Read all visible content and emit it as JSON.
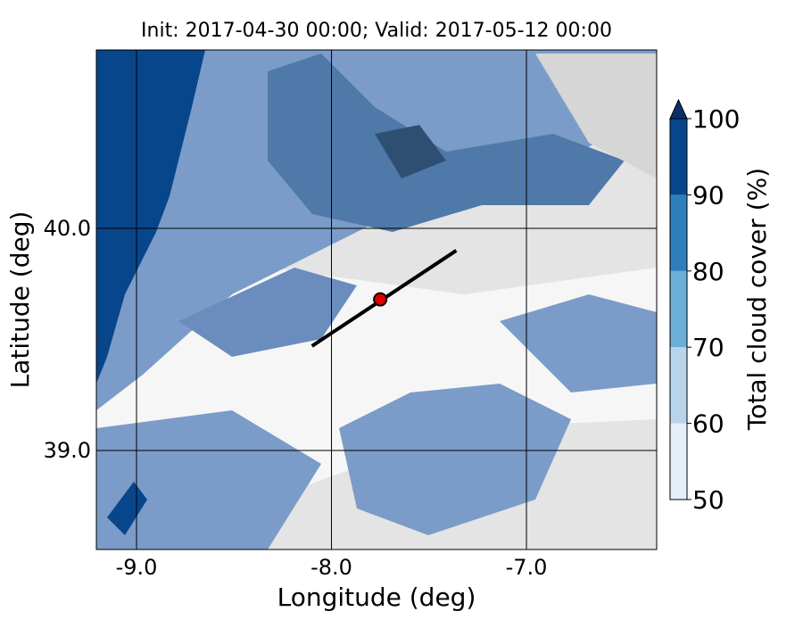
{
  "map": {
    "title": "Init: 2017-04-30 00:00; Valid: 2017-05-12 00:00",
    "x_label": "Longitude (deg)",
    "y_label": "Latitude (deg)",
    "xlim": [
      -9.206,
      -6.332
    ],
    "ylim": [
      38.554,
      40.803
    ],
    "x_ticks": [
      {
        "value": -9,
        "label": "-9.0"
      },
      {
        "value": -8,
        "label": "-8.0"
      },
      {
        "value": -7,
        "label": "-7.0"
      }
    ],
    "y_ticks": [
      {
        "value": 40,
        "label": "40.0"
      },
      {
        "value": 39,
        "label": "39.0"
      }
    ],
    "transect": {
      "lon": [
        -8.1,
        -7.36
      ],
      "lat": [
        39.47,
        39.9
      ],
      "color": "#000000"
    },
    "point": {
      "lon": -7.75,
      "lat": 39.68,
      "color": "#e00000"
    },
    "colorbar": {
      "label": "Total cloud cover (%)",
      "levels": [
        50,
        60,
        70,
        80,
        90,
        100
      ],
      "colors": [
        "#e6eff9",
        "#b7d4ea",
        "#6baed6",
        "#2f7ebc",
        "#08468b"
      ],
      "extend_color": "#0b2f6a"
    }
  }
}
